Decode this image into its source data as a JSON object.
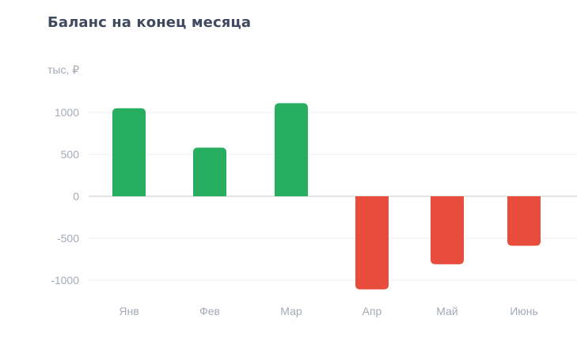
{
  "chart_data": {
    "type": "bar",
    "title": "Баланс на конец месяца",
    "ylabel": "тыс, ₽",
    "xlabel": "",
    "categories": [
      "Янв",
      "Фев",
      "Мар",
      "Апр",
      "Май",
      "Июнь"
    ],
    "values": [
      1050,
      580,
      1110,
      -1110,
      -810,
      -590
    ],
    "ylim": [
      -1000,
      1000
    ],
    "yticks": [
      "1000",
      "500",
      "0",
      "-500",
      "-1000"
    ],
    "grid": true,
    "colors": {
      "positive": "#27ae60",
      "negative": "#e74c3c",
      "grid": "#eef0f3",
      "zero_line": "#d7dbe1"
    }
  }
}
